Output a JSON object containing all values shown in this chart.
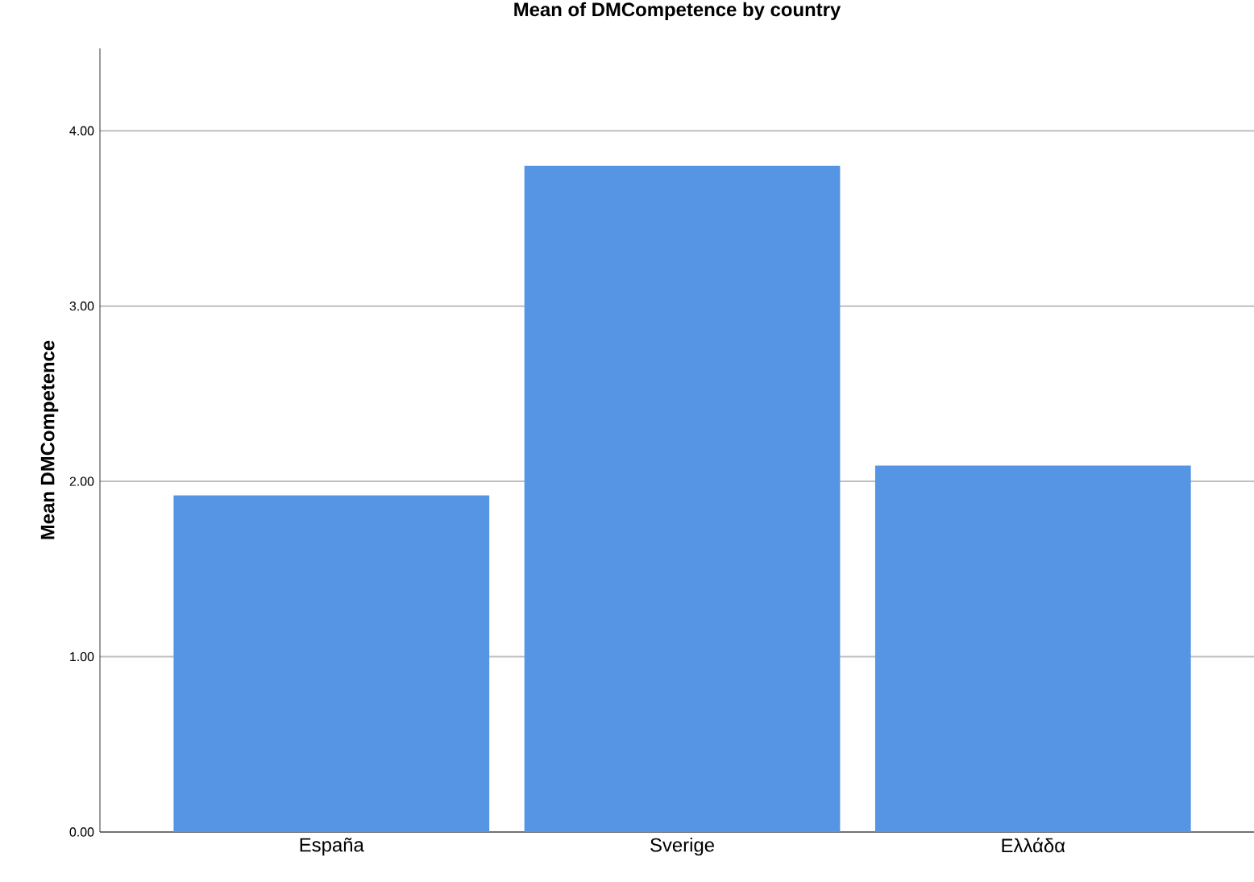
{
  "chart_data": {
    "type": "bar",
    "title": "Mean of DMCompetence by country",
    "ylabel": "Mean DMCompetence",
    "categories": [
      "España",
      "Sverige",
      "Ελλάδα"
    ],
    "values": [
      1.92,
      3.8,
      2.09
    ],
    "color": "#5595e3",
    "ylim": [
      0,
      4.47
    ],
    "yticks": [
      {
        "value": 0,
        "label": "0.00"
      },
      {
        "value": 1,
        "label": "1.00"
      },
      {
        "value": 2,
        "label": "2.00"
      },
      {
        "value": 3,
        "label": "3.00"
      },
      {
        "value": 4,
        "label": "4.00"
      }
    ],
    "grid": "y"
  }
}
